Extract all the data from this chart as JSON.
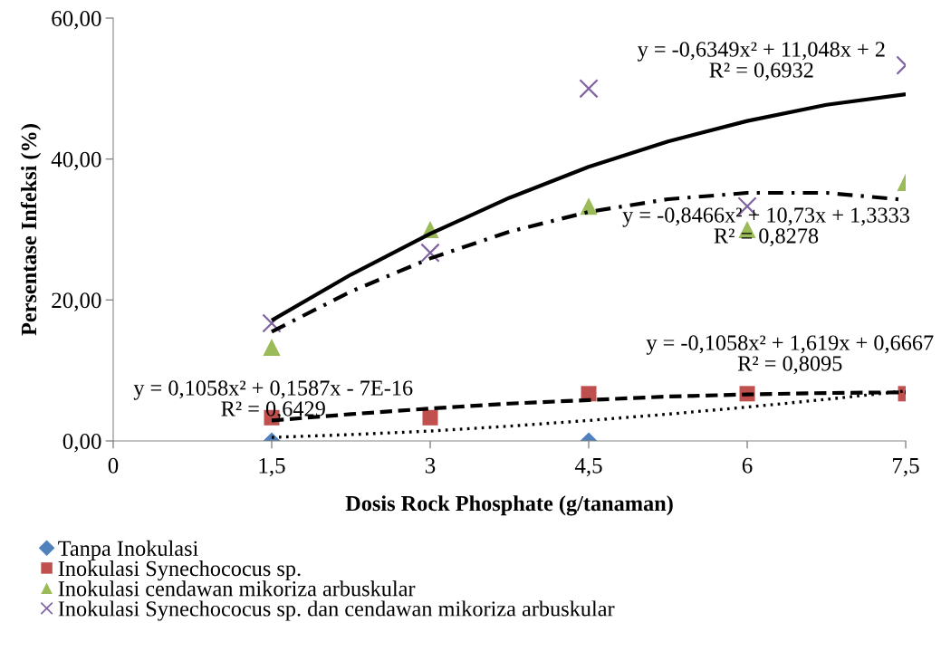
{
  "chart_data": {
    "type": "scatter",
    "xlabel": "Dosis Rock Phosphate (g/tanaman)",
    "ylabel": "Persentase Infeksi (%)",
    "x": [
      1.5,
      3,
      4.5,
      6,
      7.5
    ],
    "xlim": [
      0,
      7.5
    ],
    "xticks": [
      0,
      {
        "value": 1.5,
        "label": "1,5"
      },
      3,
      {
        "value": 4.5,
        "label": "4,5"
      },
      6,
      {
        "value": 7.5,
        "label": "7,5"
      }
    ],
    "ylim": [
      0,
      60
    ],
    "yticks": [
      {
        "value": 0,
        "label": "0,00"
      },
      {
        "value": 20,
        "label": "20,00"
      },
      {
        "value": 40,
        "label": "40,00"
      },
      {
        "value": 60,
        "label": "60,00"
      }
    ],
    "grid": false,
    "legend": "bottom left",
    "series": [
      {
        "name": "Tanpa Inokulasi",
        "color": "#4f81bd",
        "marker": "diamond",
        "values": [
          0,
          null,
          0,
          null,
          null
        ]
      },
      {
        "name": "Inokulasi Synechococus sp.",
        "color": "#c0504d",
        "marker": "square",
        "values": [
          3.3,
          3.3,
          6.7,
          6.7,
          6.7
        ]
      },
      {
        "name": "Inokulasi cendawan mikoriza arbuskular",
        "color": "#9bbb59",
        "marker": "triangle",
        "values": [
          13.3,
          30.0,
          33.3,
          30.0,
          36.7
        ]
      },
      {
        "name": "Inokulasi Synechococus sp. dan cendawan mikoriza arbuskular",
        "color": "#8064a2",
        "marker": "cross",
        "values": [
          16.7,
          26.7,
          50.0,
          33.3,
          53.3
        ]
      },
      {
        "type": "line",
        "color": "#000000",
        "line_style": "dotted",
        "x": [
          1.5,
          2.25,
          3,
          3.75,
          4.5,
          5.25,
          6,
          6.75,
          7.5
        ],
        "values": [
          0.5,
          0.9,
          1.4,
          2.1,
          2.9,
          3.8,
          4.8,
          5.9,
          7.1
        ]
      },
      {
        "type": "line",
        "color": "#000000",
        "line_style": "dashed",
        "x": [
          1.5,
          2.25,
          3,
          3.75,
          4.5,
          5.25,
          6,
          6.75,
          7.5
        ],
        "values": [
          2.9,
          3.8,
          4.6,
          5.3,
          5.8,
          6.3,
          6.6,
          6.8,
          6.9
        ]
      },
      {
        "type": "line",
        "color": "#000000",
        "line_style": "dashdot",
        "x": [
          1.5,
          2.25,
          3,
          3.75,
          4.5,
          5.25,
          6,
          6.75,
          7.5
        ],
        "values": [
          15.5,
          21.2,
          25.9,
          29.7,
          32.5,
          34.3,
          35.2,
          35.2,
          34.2
        ]
      },
      {
        "type": "line",
        "color": "#000000",
        "line_style": "solid",
        "x": [
          1.5,
          2.25,
          3,
          3.75,
          4.5,
          5.25,
          6,
          6.75,
          7.5
        ],
        "values": [
          17.1,
          23.6,
          29.4,
          34.5,
          38.9,
          42.5,
          45.4,
          47.7,
          49.2
        ]
      }
    ],
    "annotations": [
      "y = -0,6349x² + 11,048x + 2\nR² = 0,6932",
      "y = -0,8466x² + 10,73x + 1,3333\nR² = 0,8278",
      "y = -0,1058x² + 1,619x + 0,6667\nR² = 0,8095",
      "y = 0,1058x² + 0,1587x - 7E-16\nR² = 0,6429"
    ]
  }
}
